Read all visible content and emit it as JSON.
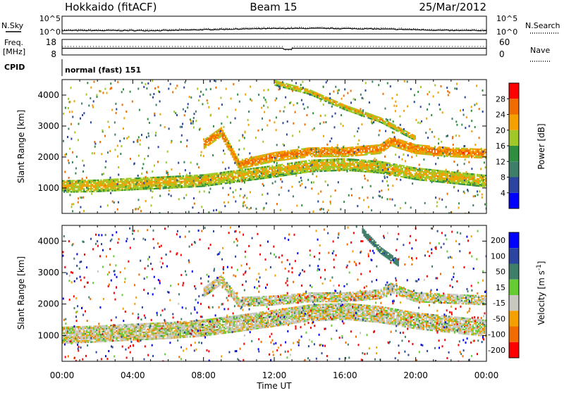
{
  "header": {
    "station": "Hokkaido (fitACF)",
    "beam": "Beam 15",
    "date": "25/Mar/2012"
  },
  "strips": {
    "nsky_label": "N.Sky",
    "nsky_ticks": [
      "10^5",
      "10^0"
    ],
    "nsearch_label": "N.Search",
    "nsearch_ticks": [
      "10^5",
      "10^0"
    ],
    "freq_label": "Freq.",
    "freq_unit": "[MHz]",
    "freq_ticks": [
      "18",
      "8"
    ],
    "nave_label": "Nave",
    "nave_ticks": [
      "60",
      "0"
    ],
    "cpid_label": "CPID",
    "cpid_value": "normal (fast) 151"
  },
  "chart_data": [
    {
      "type": "heatmap",
      "name": "Power",
      "ylabel": "Slant Range [km]",
      "ylim": [
        180,
        4500
      ],
      "y_ticks": [
        1000,
        2000,
        3000,
        4000
      ],
      "colorbar_label": "Power [dB]",
      "colorbar_ticks": [
        4,
        8,
        12,
        16,
        20,
        24,
        28
      ],
      "colorbar_range": [
        0,
        32
      ],
      "colors": [
        "#0000ff",
        "#2b45a0",
        "#3f7f6a",
        "#2f8f3f",
        "#a0c828",
        "#f4a000",
        "#f06c00",
        "#ff0000"
      ],
      "bands": [
        {
          "label": "main echo band",
          "t": [
            0,
            2,
            4,
            6,
            8,
            10,
            12,
            14,
            16,
            18,
            20,
            22,
            24
          ],
          "range_km": [
            1050,
            1070,
            1130,
            1180,
            1240,
            1390,
            1540,
            1710,
            1760,
            1670,
            1460,
            1340,
            1220
          ],
          "width_km": 400,
          "power_db": 22
        },
        {
          "label": "upper band",
          "t": [
            8,
            9,
            10,
            12,
            14,
            16,
            18,
            18.6,
            20,
            22,
            24
          ],
          "range_km": [
            2400,
            2800,
            1750,
            2000,
            2150,
            2150,
            2250,
            2500,
            2250,
            2150,
            2100
          ],
          "width_km": 300,
          "power_db": 26
        },
        {
          "label": "high rising trace",
          "t": [
            12,
            14,
            16,
            18,
            20
          ],
          "range_km": [
            4400,
            4100,
            3600,
            3200,
            2600
          ],
          "width_km": 180,
          "power_db": 22
        }
      ]
    },
    {
      "type": "heatmap",
      "name": "Velocity",
      "ylabel": "Slant Range [km]",
      "ylim": [
        180,
        4500
      ],
      "y_ticks": [
        1000,
        2000,
        3000,
        4000
      ],
      "colorbar_label": "Velocity [m s^-1]",
      "colorbar_ticks": [
        200,
        100,
        50,
        15,
        -15,
        -50,
        -100,
        -200
      ],
      "colors": [
        "#0000ff",
        "#2b45a0",
        "#3f7f6a",
        "#66cc33",
        "#c8c8c0",
        "#f4a000",
        "#f06c00",
        "#ff0000"
      ],
      "bands": [
        {
          "label": "ground scatter band",
          "t": [
            0,
            2,
            4,
            6,
            8,
            10,
            12,
            14,
            16,
            18,
            20,
            22,
            24
          ],
          "range_km": [
            1000,
            1040,
            1100,
            1150,
            1230,
            1380,
            1540,
            1710,
            1760,
            1660,
            1460,
            1340,
            1220
          ],
          "width_km": 520,
          "velocity_ms": 0
        },
        {
          "label": "upper band",
          "t": [
            8,
            9,
            10,
            12,
            14,
            16,
            18,
            18.6,
            20,
            22,
            24
          ],
          "range_km": [
            2350,
            2750,
            2050,
            2100,
            2200,
            2200,
            2300,
            2500,
            2200,
            2150,
            2100
          ],
          "width_km": 280,
          "velocity_ms": 0
        },
        {
          "label": "positive velocity streak",
          "t": [
            17,
            18,
            19
          ],
          "range_km": [
            4300,
            3700,
            3300
          ],
          "width_km": 200,
          "velocity_ms": 60
        }
      ]
    }
  ],
  "x_axis": {
    "label": "Time UT",
    "ticks": [
      "00:00",
      "04:00",
      "08:00",
      "12:00",
      "16:00",
      "20:00",
      "00:00"
    ]
  }
}
